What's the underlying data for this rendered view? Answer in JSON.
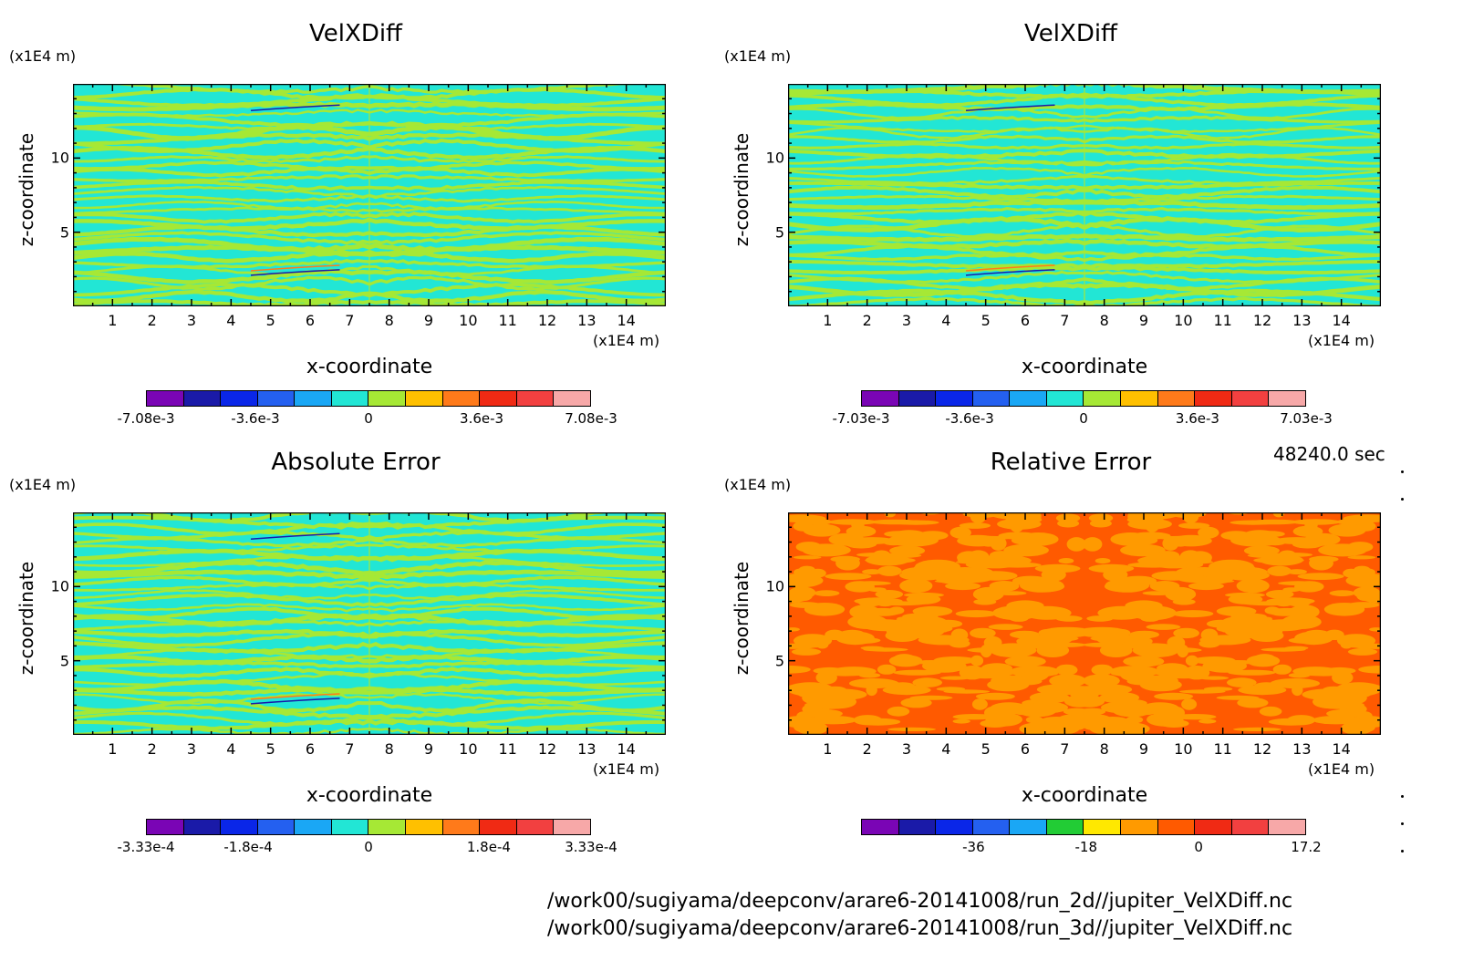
{
  "chart_data": [
    {
      "type": "heatmap",
      "title": "VelXDiff",
      "xlabel": "x-coordinate",
      "ylabel": "z-coordinate",
      "x_unit": "(x1E4 m)",
      "y_unit": "(x1E4 m)",
      "xlim": [
        0,
        15
      ],
      "ylim": [
        0,
        15
      ],
      "x_ticks": [
        "1",
        "2",
        "3",
        "4",
        "5",
        "6",
        "7",
        "8",
        "9",
        "10",
        "11",
        "12",
        "13",
        "14"
      ],
      "y_ticks": [
        "5",
        "10"
      ],
      "colorbar": {
        "colors": [
          "#7a05b5",
          "#1a1aa8",
          "#0a26e8",
          "#2460f0",
          "#1aa7f5",
          "#22e6d5",
          "#a6e835",
          "#ffc000",
          "#ff7a1a",
          "#f02a14",
          "#f24040",
          "#f7a8a8"
        ],
        "ticks": [
          "-7.08e-3",
          "-3.6e-3",
          "0",
          "3.6e-3",
          "7.08e-3"
        ],
        "range": [
          -0.00708,
          0.00708
        ]
      },
      "dominant_colors": [
        "#a6e835",
        "#22e6d5"
      ],
      "pattern": "stripes"
    },
    {
      "type": "heatmap",
      "title": "VelXDiff",
      "xlabel": "x-coordinate",
      "ylabel": "z-coordinate",
      "x_unit": "(x1E4 m)",
      "y_unit": "(x1E4 m)",
      "xlim": [
        0,
        15
      ],
      "ylim": [
        0,
        15
      ],
      "x_ticks": [
        "1",
        "2",
        "3",
        "4",
        "5",
        "6",
        "7",
        "8",
        "9",
        "10",
        "11",
        "12",
        "13",
        "14"
      ],
      "y_ticks": [
        "5",
        "10"
      ],
      "colorbar": {
        "colors": [
          "#7a05b5",
          "#1a1aa8",
          "#0a26e8",
          "#2460f0",
          "#1aa7f5",
          "#22e6d5",
          "#a6e835",
          "#ffc000",
          "#ff7a1a",
          "#f02a14",
          "#f24040",
          "#f7a8a8"
        ],
        "ticks": [
          "-7.03e-3",
          "-3.6e-3",
          "0",
          "3.6e-3",
          "7.03e-3"
        ],
        "range": [
          -0.00703,
          0.00703
        ]
      },
      "dominant_colors": [
        "#a6e835",
        "#22e6d5"
      ],
      "pattern": "stripes"
    },
    {
      "type": "heatmap",
      "title": "Absolute Error",
      "xlabel": "x-coordinate",
      "ylabel": "z-coordinate",
      "x_unit": "(x1E4 m)",
      "y_unit": "(x1E4 m)",
      "xlim": [
        0,
        15
      ],
      "ylim": [
        0,
        15
      ],
      "x_ticks": [
        "1",
        "2",
        "3",
        "4",
        "5",
        "6",
        "7",
        "8",
        "9",
        "10",
        "11",
        "12",
        "13",
        "14"
      ],
      "y_ticks": [
        "5",
        "10"
      ],
      "colorbar": {
        "colors": [
          "#7a05b5",
          "#1a1aa8",
          "#0a26e8",
          "#2460f0",
          "#1aa7f5",
          "#22e6d5",
          "#a6e835",
          "#ffc000",
          "#ff7a1a",
          "#f02a14",
          "#f24040",
          "#f7a8a8"
        ],
        "ticks": [
          "-3.33e-4",
          "-1.8e-4",
          "0",
          "1.8e-4",
          "3.33e-4"
        ],
        "range": [
          -0.000333,
          0.000333
        ]
      },
      "dominant_colors": [
        "#a6e835",
        "#22e6d5"
      ],
      "pattern": "stripes"
    },
    {
      "type": "heatmap",
      "title": "Relative Error",
      "xlabel": "x-coordinate",
      "ylabel": "z-coordinate",
      "x_unit": "(x1E4 m)",
      "y_unit": "(x1E4 m)",
      "xlim": [
        0,
        15
      ],
      "ylim": [
        0,
        15
      ],
      "x_ticks": [
        "1",
        "2",
        "3",
        "4",
        "5",
        "6",
        "7",
        "8",
        "9",
        "10",
        "11",
        "12",
        "13",
        "14"
      ],
      "y_ticks": [
        "5",
        "10"
      ],
      "colorbar": {
        "colors": [
          "#7a05b5",
          "#1a1aa8",
          "#0a26e8",
          "#2460f0",
          "#1aa7f5",
          "#22cc35",
          "#ffe800",
          "#ff9a00",
          "#ff5a00",
          "#f02a14",
          "#f24040",
          "#f7a8a8"
        ],
        "ticks": [
          "-36",
          "-18",
          "0",
          "17.2"
        ],
        "range": [
          -54,
          17.2
        ]
      },
      "dominant_colors": [
        "#ff9a00",
        "#ff5a00"
      ],
      "pattern": "blobs"
    }
  ],
  "footer": {
    "time": "48240.0 sec",
    "path_2d": "/work00/sugiyama/deepconv/arare6-20141008/run_2d//jupiter_VelXDiff.nc",
    "path_3d": "/work00/sugiyama/deepconv/arare6-20141008/run_3d//jupiter_VelXDiff.nc"
  }
}
